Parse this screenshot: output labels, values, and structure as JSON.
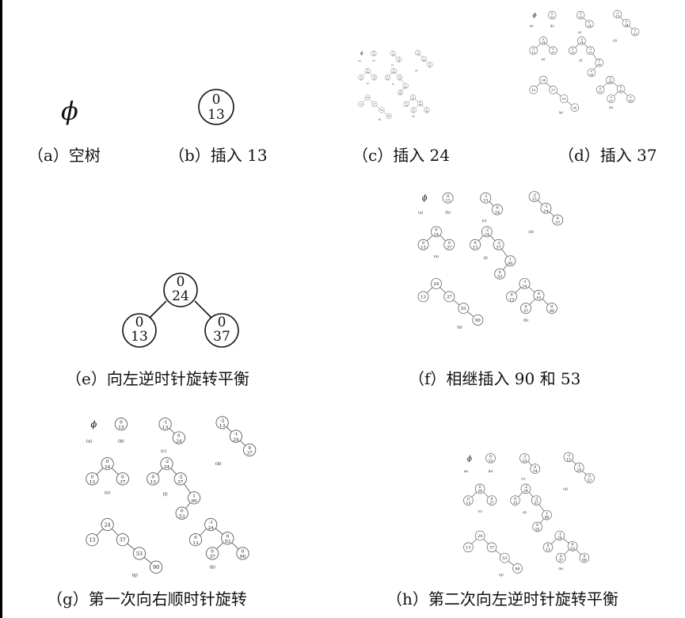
{
  "empty_symbol": "ϕ",
  "panels": [
    {
      "id": "a",
      "caption": "（a）空树"
    },
    {
      "id": "b",
      "caption": "（b）插入 13"
    },
    {
      "id": "c",
      "caption": "（c）插入 24"
    },
    {
      "id": "d",
      "caption": "（d）插入 37"
    },
    {
      "id": "e",
      "caption": "（e）向左逆时针旋转平衡"
    },
    {
      "id": "f",
      "caption": "（f）相继插入 90 和 53"
    },
    {
      "id": "g",
      "caption": "（g）第一次向右顺时针旋转"
    },
    {
      "id": "h",
      "caption": "（h）第二次向左逆时针旋转平衡"
    }
  ],
  "nodes": {
    "n13_b": {
      "bf": "0",
      "key": "13"
    },
    "n24_e": {
      "bf": "0",
      "key": "24"
    },
    "n13_e": {
      "bf": "0",
      "key": "13"
    },
    "n37_e": {
      "bf": "0",
      "key": "37"
    }
  },
  "thumb": {
    "sub_labels": [
      "(a)",
      "(b)",
      "(c)",
      "(d)",
      "(e)",
      "(f)",
      "(g)",
      "(h)"
    ],
    "empty": "ϕ",
    "b": [
      {
        "bf": "0",
        "key": "13"
      }
    ],
    "c": [
      {
        "bf": "-1",
        "key": "13"
      },
      {
        "bf": "0",
        "key": "24"
      }
    ],
    "d": [
      {
        "bf": "-2",
        "key": "13"
      },
      {
        "bf": "-1",
        "key": "24"
      },
      {
        "bf": "0",
        "key": "37"
      }
    ],
    "e": [
      {
        "bf": "0",
        "key": "24"
      },
      {
        "bf": "0",
        "key": "13"
      },
      {
        "bf": "0",
        "key": "37"
      }
    ],
    "f": [
      {
        "bf": "-2",
        "key": "24"
      },
      {
        "bf": "0",
        "key": "13"
      },
      {
        "bf": "-2",
        "key": "37"
      },
      {
        "bf": "1",
        "key": "90"
      },
      {
        "bf": "0",
        "key": "53"
      }
    ],
    "g": [
      {
        "key": "24"
      },
      {
        "key": "13"
      },
      {
        "key": "37"
      },
      {
        "key": "53"
      },
      {
        "key": "90"
      }
    ],
    "h": [
      {
        "bf": "-1",
        "key": "24"
      },
      {
        "bf": "0",
        "key": "13"
      },
      {
        "bf": "0",
        "key": "53"
      },
      {
        "bf": "0",
        "key": "37"
      },
      {
        "bf": "0",
        "key": "90"
      }
    ]
  },
  "colors": {
    "background": "#ffffff",
    "frame": "#000000",
    "ink": "#111111",
    "thumb_ink": "#555555"
  }
}
